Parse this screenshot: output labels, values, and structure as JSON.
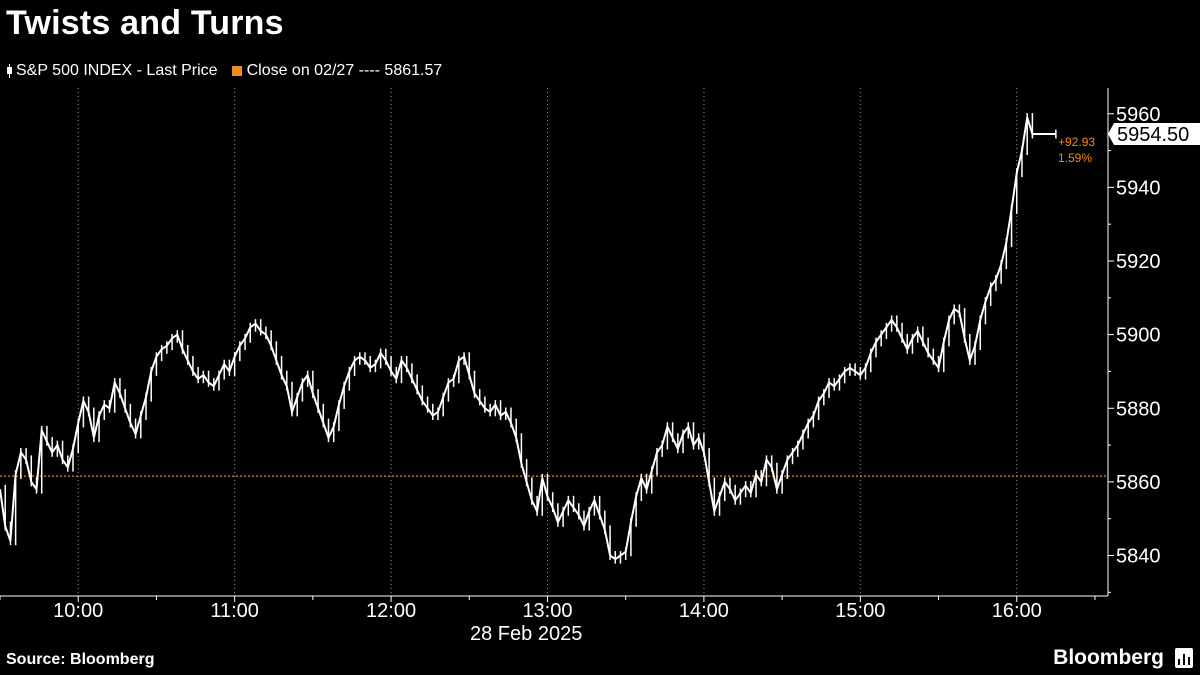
{
  "title": "Twists and Turns",
  "legend": {
    "series_label": "S&P 500 INDEX - Last Price",
    "reference_label": "Close on 02/27 ---- 5861.57"
  },
  "source": "Source: Bloomberg",
  "brand": "Bloomberg",
  "brand_icon": "bar-chart-icon",
  "colors": {
    "background": "#000000",
    "series": "#ffffff",
    "reference": "#f28c1b",
    "axis": "#ffffff"
  },
  "chart_data": {
    "type": "line",
    "title": "Twists and Turns",
    "date_label": "28 Feb 2025",
    "xlabel": "",
    "ylabel": "",
    "x_ticks": [
      "10:00",
      "11:00",
      "12:00",
      "13:00",
      "14:00",
      "15:00",
      "16:00"
    ],
    "y_ticks": [
      5840,
      5860,
      5880,
      5900,
      5920,
      5940,
      5960
    ],
    "ylim": [
      5829,
      5967
    ],
    "xlim": [
      "09:30",
      "16:35"
    ],
    "grid": "vertical dotted at hours",
    "legend_position": "top-left",
    "reference": {
      "name": "Close on 02/27",
      "value": 5861.57
    },
    "last_price": {
      "value": "5954.50",
      "change": "+92.93",
      "change_pct": "1.59%"
    },
    "series": [
      {
        "name": "S&P 500 INDEX - Last Price",
        "points": [
          [
            "09:30",
            5858
          ],
          [
            "09:32",
            5848
          ],
          [
            "09:34",
            5844
          ],
          [
            "09:36",
            5862
          ],
          [
            "09:38",
            5868
          ],
          [
            "09:40",
            5866
          ],
          [
            "09:42",
            5860
          ],
          [
            "09:44",
            5858
          ],
          [
            "09:46",
            5874
          ],
          [
            "09:48",
            5871
          ],
          [
            "09:50",
            5868
          ],
          [
            "09:52",
            5870
          ],
          [
            "09:54",
            5866
          ],
          [
            "09:56",
            5864
          ],
          [
            "09:58",
            5869
          ],
          [
            "10:00",
            5876
          ],
          [
            "10:02",
            5882
          ],
          [
            "10:04",
            5879
          ],
          [
            "10:06",
            5872
          ],
          [
            "10:08",
            5878
          ],
          [
            "10:10",
            5881
          ],
          [
            "10:12",
            5880
          ],
          [
            "10:14",
            5887
          ],
          [
            "10:16",
            5884
          ],
          [
            "10:18",
            5880
          ],
          [
            "10:20",
            5876
          ],
          [
            "10:22",
            5873
          ],
          [
            "10:24",
            5878
          ],
          [
            "10:26",
            5883
          ],
          [
            "10:28",
            5890
          ],
          [
            "10:30",
            5894
          ],
          [
            "10:32",
            5896
          ],
          [
            "10:34",
            5897
          ],
          [
            "10:36",
            5899
          ],
          [
            "10:38",
            5900
          ],
          [
            "10:40",
            5896
          ],
          [
            "10:42",
            5893
          ],
          [
            "10:44",
            5890
          ],
          [
            "10:46",
            5888
          ],
          [
            "10:48",
            5889
          ],
          [
            "10:50",
            5887
          ],
          [
            "10:52",
            5886
          ],
          [
            "10:54",
            5889
          ],
          [
            "10:56",
            5892
          ],
          [
            "10:58",
            5890
          ],
          [
            "11:00",
            5894
          ],
          [
            "11:02",
            5897
          ],
          [
            "11:04",
            5899
          ],
          [
            "11:06",
            5902
          ],
          [
            "11:08",
            5903
          ],
          [
            "11:10",
            5901
          ],
          [
            "11:12",
            5900
          ],
          [
            "11:14",
            5897
          ],
          [
            "11:16",
            5893
          ],
          [
            "11:18",
            5889
          ],
          [
            "11:20",
            5886
          ],
          [
            "11:22",
            5879
          ],
          [
            "11:24",
            5883
          ],
          [
            "11:26",
            5887
          ],
          [
            "11:28",
            5889
          ],
          [
            "11:30",
            5884
          ],
          [
            "11:32",
            5880
          ],
          [
            "11:34",
            5876
          ],
          [
            "11:36",
            5872
          ],
          [
            "11:38",
            5875
          ],
          [
            "11:40",
            5881
          ],
          [
            "11:42",
            5886
          ],
          [
            "11:44",
            5890
          ],
          [
            "11:46",
            5893
          ],
          [
            "11:48",
            5894
          ],
          [
            "11:50",
            5893
          ],
          [
            "11:52",
            5891
          ],
          [
            "11:54",
            5892
          ],
          [
            "11:56",
            5895
          ],
          [
            "11:58",
            5893
          ],
          [
            "12:00",
            5890
          ],
          [
            "12:02",
            5888
          ],
          [
            "12:04",
            5893
          ],
          [
            "12:06",
            5891
          ],
          [
            "12:08",
            5888
          ],
          [
            "12:10",
            5885
          ],
          [
            "12:12",
            5882
          ],
          [
            "12:14",
            5880
          ],
          [
            "12:16",
            5878
          ],
          [
            "12:18",
            5879
          ],
          [
            "12:20",
            5883
          ],
          [
            "12:22",
            5887
          ],
          [
            "12:24",
            5888
          ],
          [
            "12:26",
            5893
          ],
          [
            "12:28",
            5894
          ],
          [
            "12:30",
            5889
          ],
          [
            "12:32",
            5884
          ],
          [
            "12:34",
            5882
          ],
          [
            "12:36",
            5880
          ],
          [
            "12:38",
            5879
          ],
          [
            "12:40",
            5881
          ],
          [
            "12:42",
            5878
          ],
          [
            "12:44",
            5879
          ],
          [
            "12:46",
            5876
          ],
          [
            "12:48",
            5872
          ],
          [
            "12:50",
            5865
          ],
          [
            "12:52",
            5860
          ],
          [
            "12:54",
            5855
          ],
          [
            "12:56",
            5852
          ],
          [
            "12:58",
            5861
          ],
          [
            "13:00",
            5856
          ],
          [
            "13:02",
            5853
          ],
          [
            "13:04",
            5849
          ],
          [
            "13:06",
            5852
          ],
          [
            "13:08",
            5855
          ],
          [
            "13:10",
            5853
          ],
          [
            "13:12",
            5851
          ],
          [
            "13:14",
            5848
          ],
          [
            "13:16",
            5852
          ],
          [
            "13:18",
            5855
          ],
          [
            "13:20",
            5851
          ],
          [
            "13:22",
            5847
          ],
          [
            "13:24",
            5840
          ],
          [
            "13:26",
            5839
          ],
          [
            "13:28",
            5840
          ],
          [
            "13:30",
            5841
          ],
          [
            "13:32",
            5849
          ],
          [
            "13:34",
            5856
          ],
          [
            "13:36",
            5861
          ],
          [
            "13:38",
            5858
          ],
          [
            "13:40",
            5863
          ],
          [
            "13:42",
            5868
          ],
          [
            "13:44",
            5870
          ],
          [
            "13:46",
            5875
          ],
          [
            "13:48",
            5872
          ],
          [
            "13:50",
            5869
          ],
          [
            "13:52",
            5873
          ],
          [
            "13:54",
            5875
          ],
          [
            "13:56",
            5870
          ],
          [
            "13:58",
            5872
          ],
          [
            "14:00",
            5868
          ],
          [
            "14:02",
            5860
          ],
          [
            "14:04",
            5852
          ],
          [
            "14:06",
            5856
          ],
          [
            "14:08",
            5860
          ],
          [
            "14:10",
            5858
          ],
          [
            "14:12",
            5855
          ],
          [
            "14:14",
            5857
          ],
          [
            "14:16",
            5859
          ],
          [
            "14:18",
            5857
          ],
          [
            "14:20",
            5862
          ],
          [
            "14:22",
            5860
          ],
          [
            "14:24",
            5866
          ],
          [
            "14:26",
            5864
          ],
          [
            "14:28",
            5858
          ],
          [
            "14:30",
            5862
          ],
          [
            "14:32",
            5866
          ],
          [
            "14:34",
            5868
          ],
          [
            "14:36",
            5870
          ],
          [
            "14:38",
            5873
          ],
          [
            "14:40",
            5876
          ],
          [
            "14:42",
            5878
          ],
          [
            "14:44",
            5882
          ],
          [
            "14:46",
            5884
          ],
          [
            "14:48",
            5887
          ],
          [
            "14:50",
            5886
          ],
          [
            "14:52",
            5888
          ],
          [
            "14:54",
            5890
          ],
          [
            "14:56",
            5891
          ],
          [
            "14:58",
            5890
          ],
          [
            "15:00",
            5889
          ],
          [
            "15:02",
            5891
          ],
          [
            "15:04",
            5895
          ],
          [
            "15:06",
            5898
          ],
          [
            "15:08",
            5900
          ],
          [
            "15:10",
            5902
          ],
          [
            "15:12",
            5904
          ],
          [
            "15:14",
            5902
          ],
          [
            "15:16",
            5899
          ],
          [
            "15:18",
            5896
          ],
          [
            "15:20",
            5899
          ],
          [
            "15:22",
            5901
          ],
          [
            "15:24",
            5898
          ],
          [
            "15:26",
            5895
          ],
          [
            "15:28",
            5893
          ],
          [
            "15:30",
            5891
          ],
          [
            "15:32",
            5898
          ],
          [
            "15:34",
            5904
          ],
          [
            "15:36",
            5907
          ],
          [
            "15:38",
            5906
          ],
          [
            "15:40",
            5899
          ],
          [
            "15:42",
            5893
          ],
          [
            "15:44",
            5897
          ],
          [
            "15:46",
            5904
          ],
          [
            "15:48",
            5909
          ],
          [
            "15:50",
            5913
          ],
          [
            "15:52",
            5915
          ],
          [
            "15:54",
            5919
          ],
          [
            "15:56",
            5925
          ],
          [
            "15:58",
            5934
          ],
          [
            "16:00",
            5944
          ],
          [
            "16:02",
            5950
          ],
          [
            "16:04",
            5959
          ],
          [
            "16:06",
            5954.5
          ],
          [
            "16:15",
            5954.5
          ]
        ]
      }
    ]
  }
}
